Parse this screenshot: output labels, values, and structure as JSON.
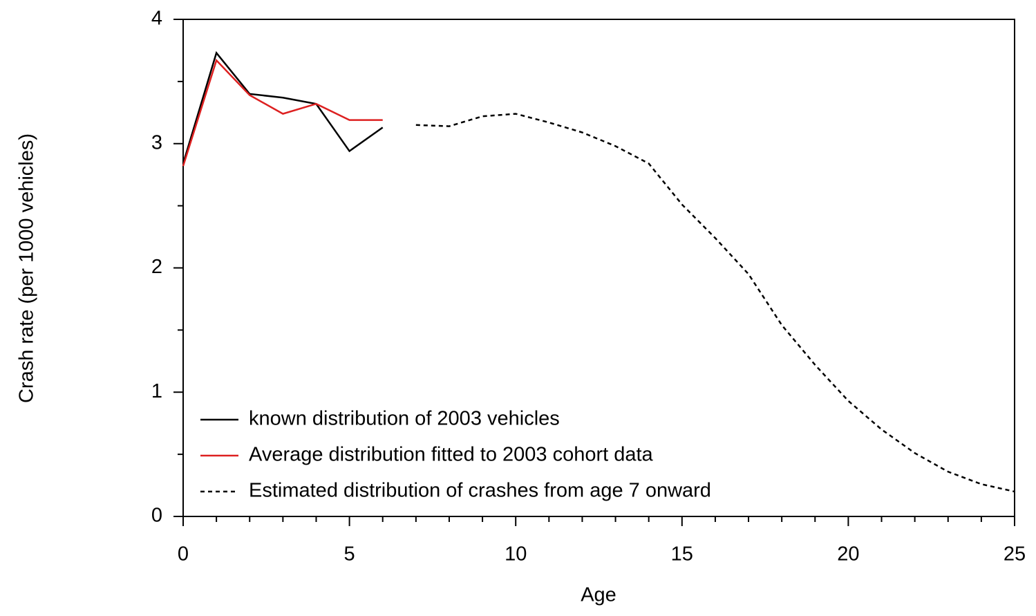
{
  "chart_data": {
    "type": "line",
    "xlabel": "Age",
    "ylabel": "Crash rate (per 1000 vehicles)",
    "x": [
      0,
      1,
      2,
      3,
      4,
      5,
      6,
      7,
      8,
      9,
      10,
      11,
      12,
      13,
      14,
      15,
      16,
      17,
      18,
      19,
      20,
      21,
      22,
      23,
      24,
      25
    ],
    "series": [
      {
        "name": "known distribution of 2003 vehicles",
        "color": "#000000",
        "dash": false,
        "values": [
          2.84,
          3.73,
          3.4,
          3.37,
          3.32,
          2.94,
          3.13,
          null,
          null,
          null,
          null,
          null,
          null,
          null,
          null,
          null,
          null,
          null,
          null,
          null,
          null,
          null,
          null,
          null,
          null,
          null
        ]
      },
      {
        "name": "Average distribution fitted to 2003 cohort data",
        "color": "#dd2020",
        "dash": false,
        "values": [
          2.82,
          3.67,
          3.39,
          3.24,
          3.32,
          3.19,
          3.19,
          null,
          null,
          null,
          null,
          null,
          null,
          null,
          null,
          null,
          null,
          null,
          null,
          null,
          null,
          null,
          null,
          null,
          null,
          null
        ]
      },
      {
        "name": "Estimated distribution of crashes from age 7 onward",
        "color": "#000000",
        "dash": true,
        "values": [
          null,
          null,
          null,
          null,
          null,
          null,
          null,
          3.15,
          3.14,
          3.22,
          3.24,
          3.17,
          3.09,
          2.98,
          2.84,
          2.51,
          2.24,
          1.95,
          1.54,
          1.22,
          0.93,
          0.7,
          0.51,
          0.36,
          0.26,
          0.2
        ]
      }
    ],
    "xlim": [
      0,
      25
    ],
    "ylim": [
      0,
      4
    ],
    "xticks": [
      0,
      5,
      10,
      15,
      20,
      25
    ],
    "yticks": [
      0,
      1,
      2,
      3,
      4
    ],
    "xminorticks": [
      1,
      2,
      3,
      4,
      6,
      7,
      8,
      9,
      11,
      12,
      13,
      14,
      16,
      17,
      18,
      19,
      21,
      22,
      23,
      24
    ],
    "yminorticks": [
      0.5,
      1.5,
      2.5,
      3.5
    ],
    "grid": false,
    "legend": "lower left"
  }
}
